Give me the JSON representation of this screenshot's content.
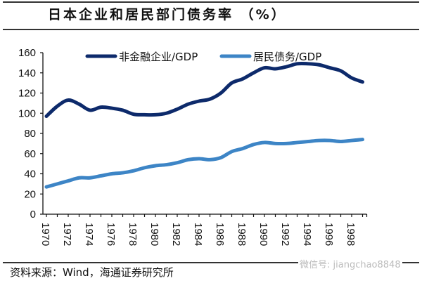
{
  "title": "日本企业和居民部门债务率 （%）",
  "source": "资料来源：Wind，海通证券研究所",
  "watermark": "微信号: jiangchao8848",
  "chart_data": {
    "type": "line",
    "title": "日本企业和居民部门债务率 （%）",
    "xlabel": "",
    "ylabel": "",
    "ylim": [
      0,
      160
    ],
    "yticks": [
      0,
      20,
      40,
      60,
      80,
      100,
      120,
      140,
      160
    ],
    "xlim": [
      1970,
      1999
    ],
    "xticks": [
      "1970",
      "1972",
      "1974",
      "1976",
      "1978",
      "1980",
      "1982",
      "1984",
      "1986",
      "1988",
      "1990",
      "1992",
      "1994",
      "1996",
      "1998"
    ],
    "grid": false,
    "legend_position": "top",
    "x": [
      1970,
      1971,
      1972,
      1973,
      1974,
      1975,
      1976,
      1977,
      1978,
      1979,
      1980,
      1981,
      1982,
      1983,
      1984,
      1985,
      1986,
      1987,
      1988,
      1989,
      1990,
      1991,
      1992,
      1993,
      1994,
      1995,
      1996,
      1997,
      1998,
      1999
    ],
    "series": [
      {
        "name": "非金融企业/GDP",
        "color": "#0d2a6b",
        "values": [
          97,
          107,
          113,
          109,
          103,
          106,
          105,
          103,
          99,
          98.5,
          98.5,
          100,
          104,
          109,
          112,
          114,
          120,
          130,
          134,
          140,
          145,
          144,
          146,
          149,
          149,
          148,
          145,
          142,
          135,
          131
        ]
      },
      {
        "name": "居民债务/GDP",
        "color": "#3d85c6",
        "values": [
          27,
          30,
          33,
          36,
          36,
          38,
          40,
          41,
          43,
          46,
          48,
          49,
          51,
          54,
          55,
          54,
          56,
          62,
          65,
          69,
          71,
          70,
          70,
          71,
          72,
          73,
          73,
          72,
          73,
          74
        ]
      }
    ]
  }
}
